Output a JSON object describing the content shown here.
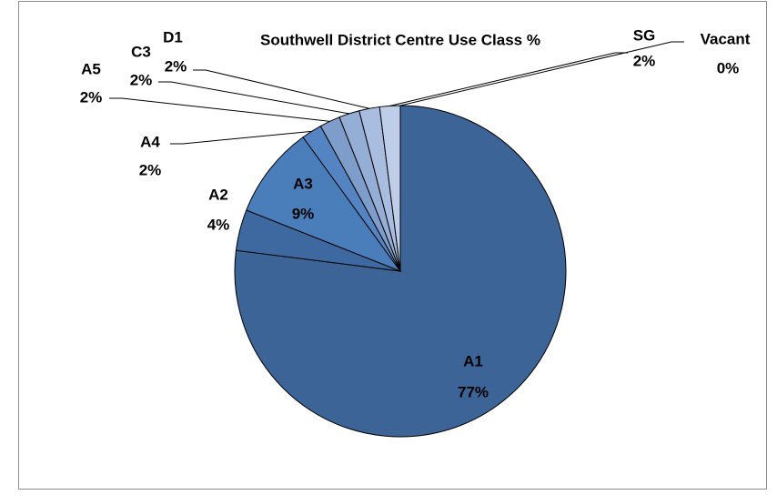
{
  "chart_data": {
    "type": "pie",
    "title": "Southwell District Centre Use Class %",
    "categories": [
      "A1",
      "A2",
      "A3",
      "A4",
      "A5",
      "C3",
      "D1",
      "SG",
      "Vacant"
    ],
    "values": [
      77,
      4,
      9,
      2,
      2,
      2,
      2,
      2,
      0
    ],
    "value_labels": [
      "77%",
      "4%",
      "9%",
      "2%",
      "2%",
      "2%",
      "2%",
      "2%",
      "0%"
    ],
    "colors": [
      "#3c6497",
      "#3e69a0",
      "#4a7ebb",
      "#5584c2",
      "#7f9dcb",
      "#95aed5",
      "#a9bde0",
      "#bfcee8",
      "#d6e0f0"
    ]
  }
}
